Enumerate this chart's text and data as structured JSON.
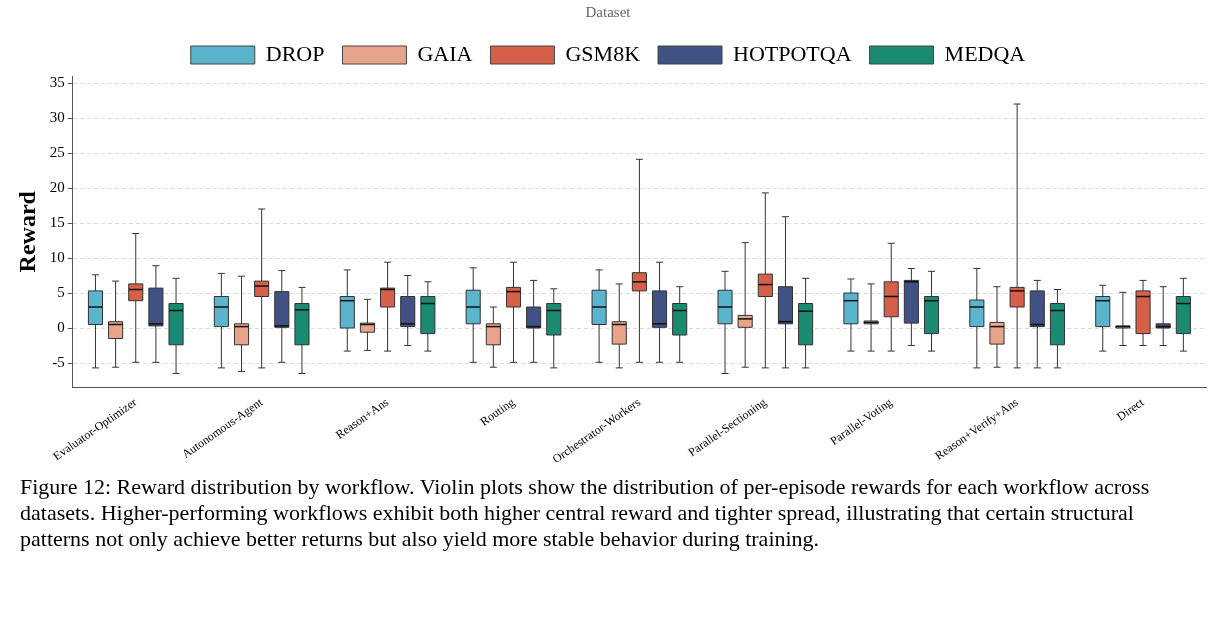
{
  "chart_data": {
    "type": "box",
    "ylabel": "Reward",
    "legend_title": "Dataset",
    "legend": "top",
    "categories": [
      "Evaluator-Optimizer",
      "Autonomous-Agent",
      "Reason+Ans",
      "Routing",
      "Orchestrator-Workers",
      "Parallel-Sectioning",
      "Parallel-Voting",
      "Reason+Verify+Ans",
      "Direct"
    ],
    "ylim": [
      -8.5,
      36
    ],
    "yticks": [
      -5,
      0,
      5,
      10,
      15,
      20,
      25,
      30,
      35
    ],
    "grid": "y",
    "series": [
      {
        "name": "DROP",
        "color": "#5ab4cc",
        "boxes": [
          {
            "low": -5.7,
            "q1": 0.5,
            "median": 3.0,
            "q3": 5.3,
            "high": 7.6
          },
          {
            "low": -5.7,
            "q1": 0.2,
            "median": 3.0,
            "q3": 4.5,
            "high": 7.8
          },
          {
            "low": -3.3,
            "q1": 0.0,
            "median": 3.9,
            "q3": 4.5,
            "high": 8.3
          },
          {
            "low": -4.9,
            "q1": 0.6,
            "median": 3.0,
            "q3": 5.4,
            "high": 8.6
          },
          {
            "low": -4.9,
            "q1": 0.5,
            "median": 3.0,
            "q3": 5.4,
            "high": 8.3
          },
          {
            "low": -6.5,
            "q1": 0.6,
            "median": 3.0,
            "q3": 5.4,
            "high": 8.1
          },
          {
            "low": -3.3,
            "q1": 0.6,
            "median": 3.9,
            "q3": 5.0,
            "high": 7.0
          },
          {
            "low": -5.7,
            "q1": 0.2,
            "median": 3.0,
            "q3": 4.0,
            "high": 8.5
          },
          {
            "low": -3.3,
            "q1": 0.2,
            "median": 3.9,
            "q3": 4.5,
            "high": 6.1
          }
        ]
      },
      {
        "name": "GAIA",
        "color": "#e8a48a",
        "boxes": [
          {
            "low": -5.6,
            "q1": -1.5,
            "median": 0.5,
            "q3": 0.9,
            "high": 6.7
          },
          {
            "low": -6.2,
            "q1": -2.4,
            "median": 0.2,
            "q3": 0.6,
            "high": 7.4
          },
          {
            "low": -3.2,
            "q1": -0.6,
            "median": 0.5,
            "q3": 0.7,
            "high": 4.1
          },
          {
            "low": -5.6,
            "q1": -2.4,
            "median": 0.2,
            "q3": 0.6,
            "high": 3.0
          },
          {
            "low": -5.7,
            "q1": -2.3,
            "median": 0.5,
            "q3": 0.9,
            "high": 6.3
          },
          {
            "low": -5.6,
            "q1": 0.1,
            "median": 1.3,
            "q3": 1.8,
            "high": 12.2
          },
          {
            "low": -3.3,
            "q1": 0.6,
            "median": 0.8,
            "q3": 1.0,
            "high": 6.3
          },
          {
            "low": -5.6,
            "q1": -2.3,
            "median": 0.2,
            "q3": 0.8,
            "high": 5.9
          },
          {
            "low": -2.5,
            "q1": 0.0,
            "median": 0.2,
            "q3": 0.3,
            "high": 5.1
          }
        ]
      },
      {
        "name": "GSM8K",
        "color": "#d65f4a",
        "boxes": [
          {
            "low": -4.9,
            "q1": 3.9,
            "median": 5.5,
            "q3": 6.3,
            "high": 13.5
          },
          {
            "low": -5.7,
            "q1": 4.5,
            "median": 6.0,
            "q3": 6.7,
            "high": 17.0
          },
          {
            "low": -3.3,
            "q1": 3.0,
            "median": 5.5,
            "q3": 5.7,
            "high": 9.4
          },
          {
            "low": -4.9,
            "q1": 3.0,
            "median": 5.2,
            "q3": 5.8,
            "high": 9.4
          },
          {
            "low": -4.9,
            "q1": 5.3,
            "median": 6.6,
            "q3": 7.9,
            "high": 24.1
          },
          {
            "low": -5.7,
            "q1": 4.5,
            "median": 6.2,
            "q3": 7.7,
            "high": 19.3
          },
          {
            "low": -3.3,
            "q1": 1.6,
            "median": 4.5,
            "q3": 6.6,
            "high": 12.1
          },
          {
            "low": -5.7,
            "q1": 3.0,
            "median": 5.3,
            "q3": 5.8,
            "high": 32.0
          },
          {
            "low": -2.5,
            "q1": -0.8,
            "median": 4.5,
            "q3": 5.3,
            "high": 6.8
          }
        ]
      },
      {
        "name": "HOTPOTQA",
        "color": "#3f5283",
        "boxes": [
          {
            "low": -4.9,
            "q1": 0.3,
            "median": 0.6,
            "q3": 5.7,
            "high": 8.9
          },
          {
            "low": -4.9,
            "q1": 0.1,
            "median": 0.3,
            "q3": 5.2,
            "high": 8.2
          },
          {
            "low": -2.5,
            "q1": 0.2,
            "median": 0.6,
            "q3": 4.5,
            "high": 7.5
          },
          {
            "low": -4.9,
            "q1": 0.0,
            "median": 0.2,
            "q3": 3.0,
            "high": 6.8
          },
          {
            "low": -4.9,
            "q1": 0.1,
            "median": 0.6,
            "q3": 5.3,
            "high": 9.4
          },
          {
            "low": -5.7,
            "q1": 0.6,
            "median": 0.9,
            "q3": 5.9,
            "high": 15.9
          },
          {
            "low": -2.5,
            "q1": 0.7,
            "median": 6.6,
            "q3": 6.8,
            "high": 8.5
          },
          {
            "low": -5.7,
            "q1": 0.2,
            "median": 0.5,
            "q3": 5.3,
            "high": 6.8
          },
          {
            "low": -2.5,
            "q1": 0.0,
            "median": 0.2,
            "q3": 0.6,
            "high": 5.9
          }
        ]
      },
      {
        "name": "MEDQA",
        "color": "#1a8a72",
        "boxes": [
          {
            "low": -6.5,
            "q1": -2.4,
            "median": 2.5,
            "q3": 3.5,
            "high": 7.1
          },
          {
            "low": -6.5,
            "q1": -2.4,
            "median": 2.6,
            "q3": 3.5,
            "high": 5.8
          },
          {
            "low": -3.3,
            "q1": -0.8,
            "median": 3.5,
            "q3": 4.5,
            "high": 6.6
          },
          {
            "low": -5.7,
            "q1": -1.0,
            "median": 2.5,
            "q3": 3.5,
            "high": 5.6
          },
          {
            "low": -4.9,
            "q1": -1.0,
            "median": 2.5,
            "q3": 3.5,
            "high": 5.9
          },
          {
            "low": -5.7,
            "q1": -2.4,
            "median": 2.4,
            "q3": 3.5,
            "high": 7.1
          },
          {
            "low": -3.3,
            "q1": -0.8,
            "median": 3.9,
            "q3": 4.5,
            "high": 8.1
          },
          {
            "low": -5.7,
            "q1": -2.4,
            "median": 2.5,
            "q3": 3.5,
            "high": 5.5
          },
          {
            "low": -3.3,
            "q1": -0.8,
            "median": 3.5,
            "q3": 4.5,
            "high": 7.1
          }
        ]
      }
    ],
    "annotations": [
      "Figure 12: Reward distribution by workflow. Violin plots show the distribution of per-episode rewards for each workflow across datasets. Higher-performing workflows exhibit both higher central reward and tighter spread, illustrating that certain structural patterns not only achieve better returns but also yield more stable behavior during training."
    ]
  }
}
